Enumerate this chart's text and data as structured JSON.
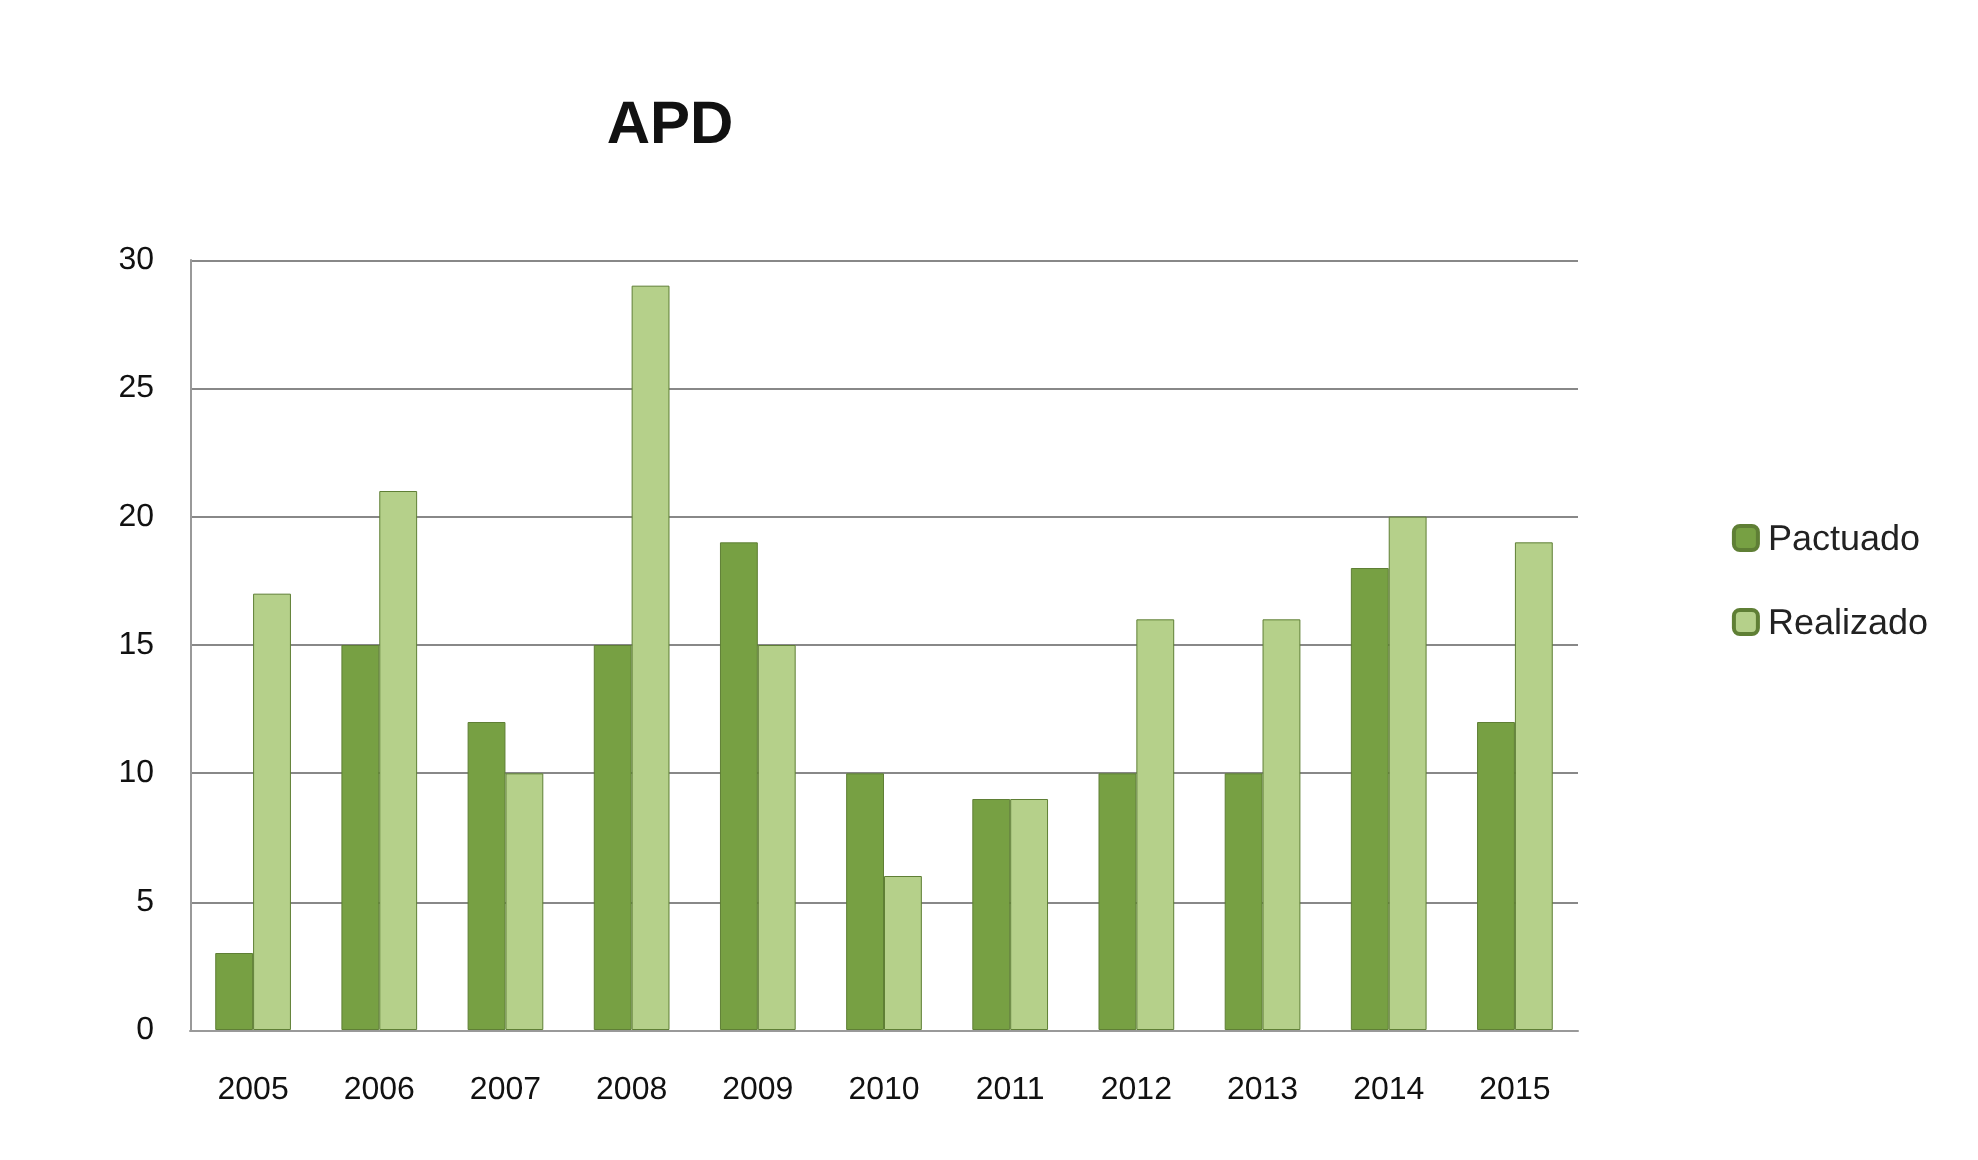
{
  "chart_data": {
    "type": "bar",
    "title": "APD",
    "categories": [
      "2005",
      "2006",
      "2007",
      "2008",
      "2009",
      "2010",
      "2011",
      "2012",
      "2013",
      "2014",
      "2015"
    ],
    "series": [
      {
        "name": "Pactuado",
        "color": "#77a043",
        "values": [
          3,
          15,
          12,
          15,
          19,
          10,
          9,
          10,
          10,
          18,
          12
        ]
      },
      {
        "name": "Realizado",
        "color": "#b5d08a",
        "values": [
          17,
          21,
          10,
          29,
          15,
          6,
          9,
          16,
          16,
          20,
          19
        ]
      }
    ],
    "ylim": [
      0,
      30
    ],
    "yticks": [
      0,
      5,
      10,
      15,
      20,
      25,
      30
    ],
    "grid": "y",
    "legend": "right"
  }
}
